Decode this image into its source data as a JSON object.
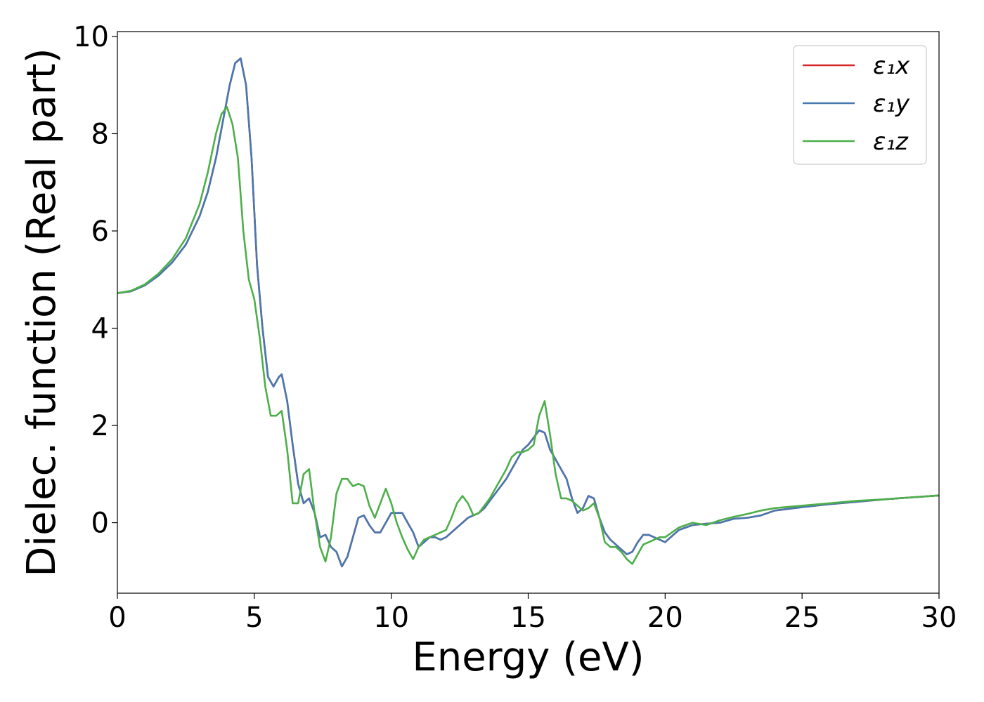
{
  "chart_data": {
    "type": "line",
    "xlabel": "Energy (eV)",
    "ylabel": "Dielec. function (Real part)",
    "xlim": [
      0,
      30
    ],
    "ylim": [
      -1.45,
      10.1
    ],
    "xticks": [
      0,
      5,
      10,
      15,
      20,
      25,
      30
    ],
    "yticks": [
      0,
      2,
      4,
      6,
      8,
      10
    ],
    "grid": false,
    "legend_position": "top-right",
    "series": [
      {
        "name": "ε₁x",
        "color": "#d62728",
        "x": [
          0,
          0.5,
          1,
          1.5,
          2,
          2.5,
          3,
          3.3,
          3.6,
          3.9,
          4.1,
          4.3,
          4.5,
          4.7,
          4.9,
          5.1,
          5.3,
          5.5,
          5.7,
          5.9,
          6.0,
          6.2,
          6.4,
          6.6,
          6.8,
          7.0,
          7.2,
          7.4,
          7.6,
          7.8,
          8.0,
          8.2,
          8.4,
          8.6,
          8.8,
          9.0,
          9.2,
          9.4,
          9.6,
          9.8,
          10.0,
          10.2,
          10.4,
          10.6,
          10.8,
          11.0,
          11.2,
          11.4,
          11.6,
          11.8,
          12.0,
          12.2,
          12.4,
          12.6,
          12.8,
          13.0,
          13.2,
          13.4,
          13.6,
          13.8,
          14.0,
          14.2,
          14.4,
          14.6,
          14.8,
          15.0,
          15.2,
          15.4,
          15.6,
          15.8,
          16.0,
          16.2,
          16.4,
          16.6,
          16.8,
          17.0,
          17.2,
          17.4,
          17.6,
          17.8,
          18.0,
          18.2,
          18.4,
          18.6,
          18.8,
          19.0,
          19.2,
          19.4,
          19.6,
          19.8,
          20.0,
          20.5,
          21.0,
          21.5,
          22.0,
          22.5,
          23.0,
          23.5,
          24.0,
          25.0,
          26.0,
          27.0,
          28.0,
          29.0,
          30.0
        ],
        "y": [
          4.72,
          4.76,
          4.88,
          5.08,
          5.35,
          5.72,
          6.3,
          6.8,
          7.5,
          8.4,
          9.0,
          9.45,
          9.55,
          9.0,
          7.5,
          5.3,
          4.0,
          3.0,
          2.8,
          3.0,
          3.05,
          2.5,
          1.6,
          0.8,
          0.4,
          0.5,
          0.2,
          -0.3,
          -0.25,
          -0.5,
          -0.6,
          -0.9,
          -0.7,
          -0.3,
          0.1,
          0.15,
          -0.05,
          -0.2,
          -0.2,
          0.0,
          0.2,
          0.2,
          0.2,
          0.0,
          -0.2,
          -0.5,
          -0.4,
          -0.3,
          -0.3,
          -0.35,
          -0.3,
          -0.2,
          -0.1,
          0.0,
          0.1,
          0.15,
          0.2,
          0.3,
          0.45,
          0.6,
          0.75,
          0.9,
          1.1,
          1.3,
          1.5,
          1.6,
          1.75,
          1.9,
          1.85,
          1.5,
          1.3,
          1.1,
          0.9,
          0.5,
          0.2,
          0.3,
          0.55,
          0.5,
          0.1,
          -0.2,
          -0.35,
          -0.45,
          -0.55,
          -0.65,
          -0.6,
          -0.4,
          -0.25,
          -0.25,
          -0.3,
          -0.35,
          -0.4,
          -0.15,
          -0.05,
          -0.02,
          0.0,
          0.08,
          0.1,
          0.15,
          0.25,
          0.32,
          0.38,
          0.43,
          0.48,
          0.52,
          0.56
        ]
      },
      {
        "name": "ε₁y",
        "color": "#4878b0",
        "x": [
          0,
          0.5,
          1,
          1.5,
          2,
          2.5,
          3,
          3.3,
          3.6,
          3.9,
          4.1,
          4.3,
          4.5,
          4.7,
          4.9,
          5.1,
          5.3,
          5.5,
          5.7,
          5.9,
          6.0,
          6.2,
          6.4,
          6.6,
          6.8,
          7.0,
          7.2,
          7.4,
          7.6,
          7.8,
          8.0,
          8.2,
          8.4,
          8.6,
          8.8,
          9.0,
          9.2,
          9.4,
          9.6,
          9.8,
          10.0,
          10.2,
          10.4,
          10.6,
          10.8,
          11.0,
          11.2,
          11.4,
          11.6,
          11.8,
          12.0,
          12.2,
          12.4,
          12.6,
          12.8,
          13.0,
          13.2,
          13.4,
          13.6,
          13.8,
          14.0,
          14.2,
          14.4,
          14.6,
          14.8,
          15.0,
          15.2,
          15.4,
          15.6,
          15.8,
          16.0,
          16.2,
          16.4,
          16.6,
          16.8,
          17.0,
          17.2,
          17.4,
          17.6,
          17.8,
          18.0,
          18.2,
          18.4,
          18.6,
          18.8,
          19.0,
          19.2,
          19.4,
          19.6,
          19.8,
          20.0,
          20.5,
          21.0,
          21.5,
          22.0,
          22.5,
          23.0,
          23.5,
          24.0,
          25.0,
          26.0,
          27.0,
          28.0,
          29.0,
          30.0
        ],
        "y": [
          4.72,
          4.76,
          4.88,
          5.08,
          5.35,
          5.72,
          6.3,
          6.8,
          7.5,
          8.4,
          9.0,
          9.45,
          9.55,
          9.0,
          7.5,
          5.3,
          4.0,
          3.0,
          2.8,
          3.0,
          3.05,
          2.5,
          1.6,
          0.8,
          0.4,
          0.5,
          0.2,
          -0.3,
          -0.25,
          -0.5,
          -0.6,
          -0.9,
          -0.7,
          -0.3,
          0.1,
          0.15,
          -0.05,
          -0.2,
          -0.2,
          0.0,
          0.2,
          0.2,
          0.2,
          0.0,
          -0.2,
          -0.5,
          -0.4,
          -0.3,
          -0.3,
          -0.35,
          -0.3,
          -0.2,
          -0.1,
          0.0,
          0.1,
          0.15,
          0.2,
          0.3,
          0.45,
          0.6,
          0.75,
          0.9,
          1.1,
          1.3,
          1.5,
          1.6,
          1.75,
          1.9,
          1.85,
          1.5,
          1.3,
          1.1,
          0.9,
          0.5,
          0.2,
          0.3,
          0.55,
          0.5,
          0.1,
          -0.2,
          -0.35,
          -0.45,
          -0.55,
          -0.65,
          -0.6,
          -0.4,
          -0.25,
          -0.25,
          -0.3,
          -0.35,
          -0.4,
          -0.15,
          -0.05,
          -0.02,
          0.0,
          0.08,
          0.1,
          0.15,
          0.25,
          0.32,
          0.38,
          0.43,
          0.48,
          0.52,
          0.56
        ]
      },
      {
        "name": "ε₁z",
        "color": "#4daf4a",
        "x": [
          0,
          0.5,
          1,
          1.5,
          2,
          2.5,
          3,
          3.3,
          3.6,
          3.8,
          4.0,
          4.2,
          4.4,
          4.6,
          4.8,
          5.0,
          5.2,
          5.4,
          5.6,
          5.8,
          6.0,
          6.2,
          6.4,
          6.6,
          6.8,
          7.0,
          7.2,
          7.4,
          7.6,
          7.8,
          8.0,
          8.2,
          8.4,
          8.6,
          8.8,
          9.0,
          9.2,
          9.4,
          9.6,
          9.8,
          10.0,
          10.2,
          10.4,
          10.6,
          10.8,
          11.0,
          11.2,
          11.4,
          11.6,
          11.8,
          12.0,
          12.2,
          12.4,
          12.6,
          12.8,
          13.0,
          13.2,
          13.4,
          13.6,
          13.8,
          14.0,
          14.2,
          14.4,
          14.6,
          14.8,
          15.0,
          15.2,
          15.4,
          15.6,
          15.8,
          16.0,
          16.2,
          16.4,
          16.6,
          16.8,
          17.0,
          17.2,
          17.4,
          17.6,
          17.8,
          18.0,
          18.2,
          18.4,
          18.6,
          18.8,
          19.0,
          19.2,
          19.4,
          19.6,
          19.8,
          20.0,
          20.5,
          21.0,
          21.5,
          22.0,
          22.5,
          23.0,
          23.5,
          24.0,
          25.0,
          26.0,
          27.0,
          28.0,
          29.0,
          30.0
        ],
        "y": [
          4.72,
          4.77,
          4.9,
          5.12,
          5.42,
          5.85,
          6.55,
          7.2,
          8.0,
          8.4,
          8.55,
          8.2,
          7.5,
          6.0,
          5.0,
          4.6,
          3.8,
          2.8,
          2.2,
          2.2,
          2.3,
          1.5,
          0.4,
          0.4,
          1.0,
          1.1,
          0.2,
          -0.5,
          -0.8,
          -0.3,
          0.6,
          0.9,
          0.9,
          0.75,
          0.8,
          0.75,
          0.35,
          0.1,
          0.4,
          0.7,
          0.4,
          0.0,
          -0.3,
          -0.55,
          -0.75,
          -0.5,
          -0.35,
          -0.3,
          -0.25,
          -0.2,
          -0.15,
          0.1,
          0.4,
          0.55,
          0.4,
          0.15,
          0.2,
          0.35,
          0.5,
          0.7,
          0.9,
          1.1,
          1.35,
          1.45,
          1.45,
          1.5,
          1.6,
          2.2,
          2.5,
          1.8,
          1.0,
          0.5,
          0.5,
          0.45,
          0.35,
          0.25,
          0.3,
          0.4,
          0.1,
          -0.4,
          -0.5,
          -0.5,
          -0.6,
          -0.75,
          -0.85,
          -0.65,
          -0.45,
          -0.4,
          -0.35,
          -0.3,
          -0.3,
          -0.1,
          0.0,
          -0.05,
          0.05,
          0.12,
          0.18,
          0.25,
          0.3,
          0.35,
          0.4,
          0.45,
          0.48,
          0.52,
          0.56
        ]
      }
    ]
  }
}
